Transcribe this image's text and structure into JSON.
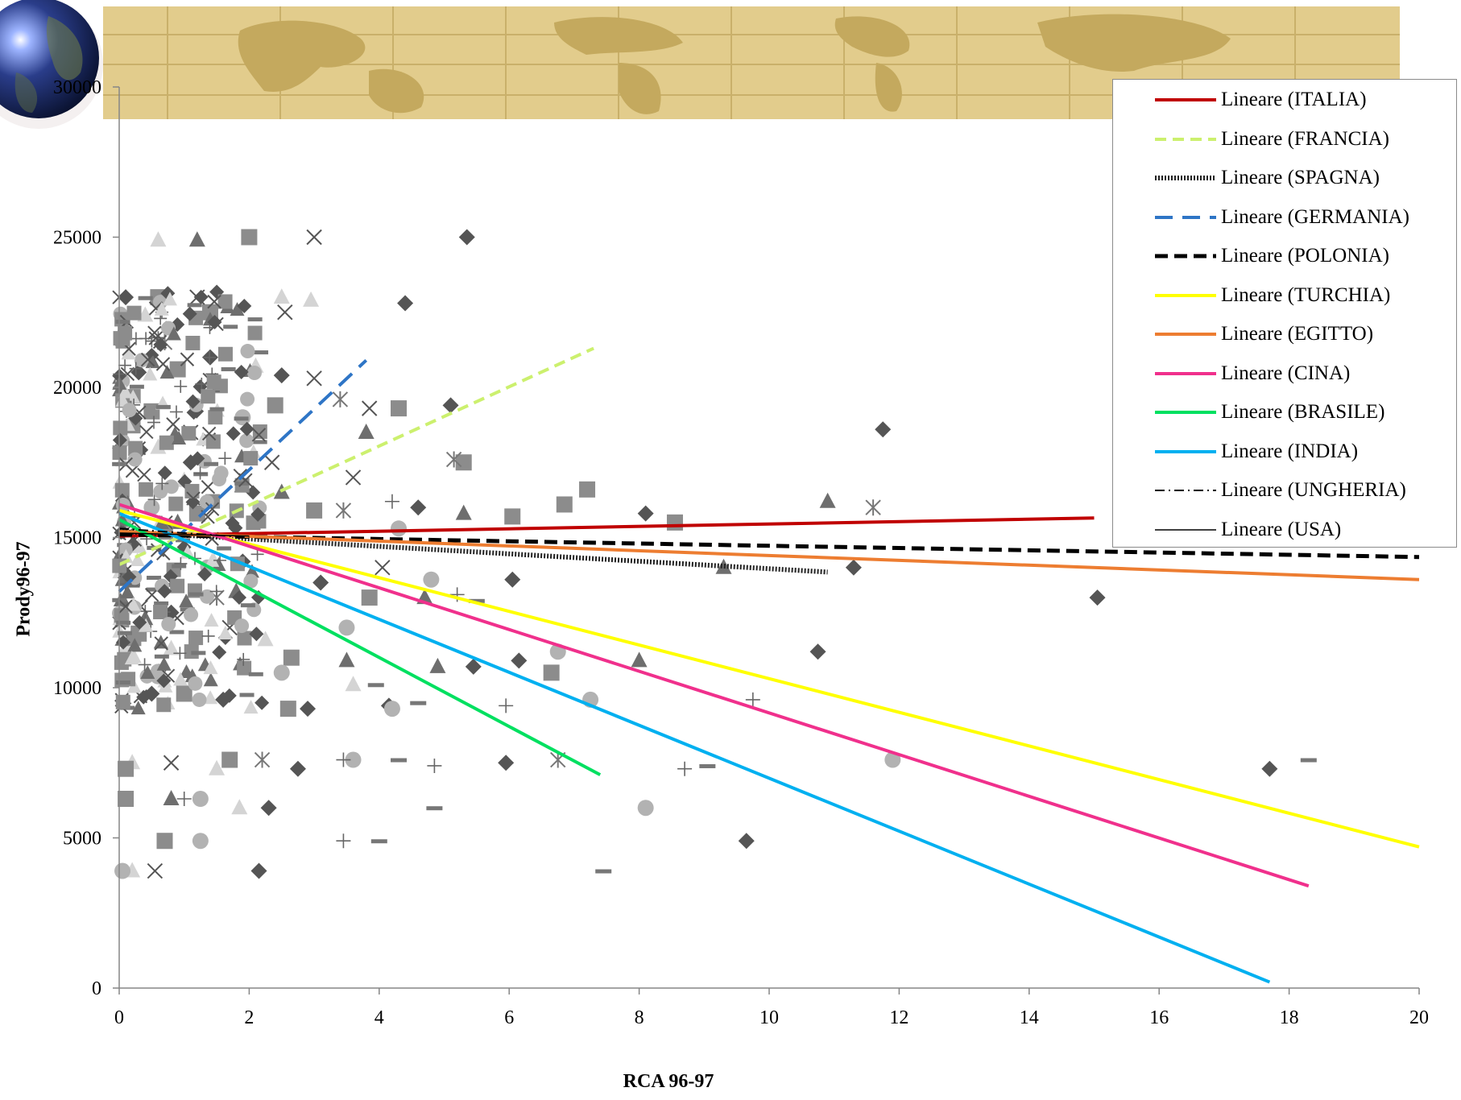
{
  "chart_data": {
    "type": "scatter",
    "title": "",
    "xlabel": "RCA 96-97",
    "ylabel": "Prody96-97",
    "xlim": [
      0,
      20
    ],
    "ylim": [
      0,
      30000
    ],
    "x_ticks": [
      "0",
      "2",
      "4",
      "6",
      "8",
      "10",
      "12",
      "14",
      "16",
      "18",
      "20"
    ],
    "y_ticks": [
      "0",
      "5000",
      "10000",
      "15000",
      "20000",
      "25000",
      "30000"
    ],
    "grid": false,
    "legend_position": "top-right",
    "trendlines": [
      {
        "name": "Lineare (ITALIA)",
        "color": "#c00000",
        "dash": "solid",
        "x": [
          0,
          15
        ],
        "y": [
          15050,
          15650
        ]
      },
      {
        "name": "Lineare (FRANCIA)",
        "color": "#ccf06e",
        "dash": "dash",
        "x": [
          0,
          7.3
        ],
        "y": [
          14100,
          21300
        ]
      },
      {
        "name": "Lineare (SPAGNA)",
        "color": "#222222",
        "dash": "dotted-thick",
        "x": [
          0,
          10.9
        ],
        "y": [
          15200,
          13850
        ]
      },
      {
        "name": "Lineare (GERMANIA)",
        "color": "#2e75c6",
        "dash": "longdash",
        "x": [
          0,
          3.8
        ],
        "y": [
          13200,
          20900
        ]
      },
      {
        "name": "Lineare (POLONIA)",
        "color": "#000000",
        "dash": "dash-thick",
        "x": [
          0,
          20
        ],
        "y": [
          15100,
          14350
        ]
      },
      {
        "name": "Lineare (TURCHIA)",
        "color": "#ffff00",
        "dash": "solid",
        "x": [
          0,
          20
        ],
        "y": [
          15900,
          4700
        ]
      },
      {
        "name": "Lineare (EGITTO)",
        "color": "#ed7d31",
        "dash": "solid",
        "x": [
          0,
          20
        ],
        "y": [
          15200,
          13600
        ]
      },
      {
        "name": "Lineare (CINA)",
        "color": "#f0308c",
        "dash": "solid",
        "x": [
          0,
          18.3
        ],
        "y": [
          16100,
          3400
        ]
      },
      {
        "name": "Lineare (BRASILE)",
        "color": "#00e060",
        "dash": "solid",
        "x": [
          0,
          7.4
        ],
        "y": [
          15600,
          7100
        ]
      },
      {
        "name": "Lineare (INDIA)",
        "color": "#00b0f0",
        "dash": "solid",
        "x": [
          0,
          17.7
        ],
        "y": [
          15800,
          200
        ]
      },
      {
        "name": "Lineare (UNGHERIA)",
        "color": "#000000",
        "dash": "dashdot",
        "x": [
          0,
          2
        ],
        "y": [
          15300,
          15000
        ]
      },
      {
        "name": "Lineare (USA)",
        "color": "#000000",
        "dash": "thin",
        "x": [
          0,
          2
        ],
        "y": [
          15150,
          15050
        ]
      }
    ],
    "scatter_points": [
      {
        "m": "diamond",
        "x": 5.35,
        "y": 25000
      },
      {
        "m": "diamond",
        "x": 4.4,
        "y": 22800
      },
      {
        "m": "diamond",
        "x": 11.75,
        "y": 18600
      },
      {
        "m": "diamond",
        "x": 5.1,
        "y": 19400
      },
      {
        "m": "diamond",
        "x": 4.6,
        "y": 16000
      },
      {
        "m": "diamond",
        "x": 8.1,
        "y": 15800
      },
      {
        "m": "diamond",
        "x": 11.3,
        "y": 14000
      },
      {
        "m": "diamond",
        "x": 15.05,
        "y": 13000
      },
      {
        "m": "diamond",
        "x": 6.05,
        "y": 13600
      },
      {
        "m": "diamond",
        "x": 10.75,
        "y": 11200
      },
      {
        "m": "diamond",
        "x": 6.15,
        "y": 10900
      },
      {
        "m": "diamond",
        "x": 5.45,
        "y": 10700
      },
      {
        "m": "diamond",
        "x": 2.9,
        "y": 9300
      },
      {
        "m": "diamond",
        "x": 4.15,
        "y": 9400
      },
      {
        "m": "diamond",
        "x": 17.7,
        "y": 7300
      },
      {
        "m": "diamond",
        "x": 5.95,
        "y": 7500
      },
      {
        "m": "diamond",
        "x": 2.75,
        "y": 7300
      },
      {
        "m": "diamond",
        "x": 2.3,
        "y": 6000
      },
      {
        "m": "diamond",
        "x": 9.65,
        "y": 4900
      },
      {
        "m": "diamond",
        "x": 2.15,
        "y": 3900
      },
      {
        "m": "diamond",
        "x": 1.4,
        "y": 21000
      },
      {
        "m": "diamond",
        "x": 1.1,
        "y": 17500
      },
      {
        "m": "diamond",
        "x": 0.8,
        "y": 12500
      },
      {
        "m": "diamond",
        "x": 0.5,
        "y": 9800
      },
      {
        "m": "diamond",
        "x": 0.3,
        "y": 20500
      },
      {
        "m": "diamond",
        "x": 0.1,
        "y": 23000
      },
      {
        "m": "diamond",
        "x": 1.9,
        "y": 14200
      },
      {
        "m": "diamond",
        "x": 2.5,
        "y": 20400
      },
      {
        "m": "diamond",
        "x": 3.1,
        "y": 13500
      },
      {
        "m": "diamond",
        "x": 1.6,
        "y": 9600
      },
      {
        "m": "triangle",
        "x": 3.8,
        "y": 18500
      },
      {
        "m": "triangle",
        "x": 10.9,
        "y": 16200
      },
      {
        "m": "triangle",
        "x": 5.3,
        "y": 15800
      },
      {
        "m": "triangle",
        "x": 9.3,
        "y": 14000
      },
      {
        "m": "triangle",
        "x": 8.0,
        "y": 10900
      },
      {
        "m": "triangle",
        "x": 4.9,
        "y": 10700
      },
      {
        "m": "triangle",
        "x": 3.5,
        "y": 10900
      },
      {
        "m": "triangle",
        "x": 4.7,
        "y": 13000
      },
      {
        "m": "triangle",
        "x": 1.2,
        "y": 24900
      },
      {
        "m": "triangle",
        "x": 0.9,
        "y": 15500
      },
      {
        "m": "triangle",
        "x": 1.8,
        "y": 13200
      },
      {
        "m": "triangle",
        "x": 0.4,
        "y": 12300
      },
      {
        "m": "triangle",
        "x": 0.8,
        "y": 6300
      },
      {
        "m": "triangle",
        "x": 2.5,
        "y": 16500
      },
      {
        "m": "ltriangle",
        "x": 0.2,
        "y": 3900
      },
      {
        "m": "ltriangle",
        "x": 0.6,
        "y": 24900
      },
      {
        "m": "ltriangle",
        "x": 2.5,
        "y": 23000
      },
      {
        "m": "ltriangle",
        "x": 2.95,
        "y": 22900
      },
      {
        "m": "ltriangle",
        "x": 3.6,
        "y": 10100
      },
      {
        "m": "ltriangle",
        "x": 2.25,
        "y": 11600
      },
      {
        "m": "ltriangle",
        "x": 1.85,
        "y": 6000
      },
      {
        "m": "ltriangle",
        "x": 2.1,
        "y": 20700
      },
      {
        "m": "ltriangle",
        "x": 0.4,
        "y": 22400
      },
      {
        "m": "ltriangle",
        "x": 0.6,
        "y": 18000
      },
      {
        "m": "ltriangle",
        "x": 1.0,
        "y": 16900
      },
      {
        "m": "ltriangle",
        "x": 0.3,
        "y": 14700
      },
      {
        "m": "ltriangle",
        "x": 0.8,
        "y": 11300
      },
      {
        "m": "ltriangle",
        "x": 1.5,
        "y": 7300
      },
      {
        "m": "ltriangle",
        "x": 0.2,
        "y": 7500
      },
      {
        "m": "square",
        "x": 2.0,
        "y": 25000
      },
      {
        "m": "square",
        "x": 1.4,
        "y": 22500
      },
      {
        "m": "square",
        "x": 4.3,
        "y": 19300
      },
      {
        "m": "square",
        "x": 5.3,
        "y": 17500
      },
      {
        "m": "square",
        "x": 7.2,
        "y": 16600
      },
      {
        "m": "square",
        "x": 6.85,
        "y": 16100
      },
      {
        "m": "square",
        "x": 6.05,
        "y": 15700
      },
      {
        "m": "square",
        "x": 8.55,
        "y": 15500
      },
      {
        "m": "square",
        "x": 6.65,
        "y": 10500
      },
      {
        "m": "square",
        "x": 3.85,
        "y": 13000
      },
      {
        "m": "square",
        "x": 2.65,
        "y": 11000
      },
      {
        "m": "square",
        "x": 2.6,
        "y": 9300
      },
      {
        "m": "square",
        "x": 1.7,
        "y": 7600
      },
      {
        "m": "square",
        "x": 0.7,
        "y": 4900
      },
      {
        "m": "square",
        "x": 0.1,
        "y": 6300
      },
      {
        "m": "square",
        "x": 0.9,
        "y": 20600
      },
      {
        "m": "square",
        "x": 0.5,
        "y": 19200
      },
      {
        "m": "square",
        "x": 1.2,
        "y": 15800
      },
      {
        "m": "square",
        "x": 0.3,
        "y": 11800
      },
      {
        "m": "square",
        "x": 1.0,
        "y": 9800
      },
      {
        "m": "square",
        "x": 0.1,
        "y": 7300
      },
      {
        "m": "square",
        "x": 2.4,
        "y": 19400
      },
      {
        "m": "square",
        "x": 3.0,
        "y": 15900
      },
      {
        "m": "square",
        "x": 0.6,
        "y": 23000
      },
      {
        "m": "circle",
        "x": 4.8,
        "y": 13600
      },
      {
        "m": "circle",
        "x": 6.75,
        "y": 11200
      },
      {
        "m": "circle",
        "x": 7.25,
        "y": 9600
      },
      {
        "m": "circle",
        "x": 3.6,
        "y": 7600
      },
      {
        "m": "circle",
        "x": 11.9,
        "y": 7600
      },
      {
        "m": "circle",
        "x": 8.1,
        "y": 6000
      },
      {
        "m": "circle",
        "x": 1.25,
        "y": 4900
      },
      {
        "m": "circle",
        "x": 3.5,
        "y": 12000
      },
      {
        "m": "circle",
        "x": 4.2,
        "y": 9300
      },
      {
        "m": "circle",
        "x": 1.25,
        "y": 6300
      },
      {
        "m": "circle",
        "x": 2.5,
        "y": 10500
      },
      {
        "m": "circle",
        "x": 1.9,
        "y": 19000
      },
      {
        "m": "circle",
        "x": 0.5,
        "y": 16000
      },
      {
        "m": "circle",
        "x": 0.05,
        "y": 3900
      },
      {
        "m": "circle",
        "x": 4.3,
        "y": 15300
      },
      {
        "m": "cross",
        "x": 3.0,
        "y": 25000
      },
      {
        "m": "cross",
        "x": 3.0,
        "y": 20300
      },
      {
        "m": "cross",
        "x": 3.85,
        "y": 19300
      },
      {
        "m": "cross",
        "x": 2.55,
        "y": 22500
      },
      {
        "m": "cross",
        "x": 3.6,
        "y": 17000
      },
      {
        "m": "cross",
        "x": 4.05,
        "y": 14000
      },
      {
        "m": "cross",
        "x": 2.35,
        "y": 17500
      },
      {
        "m": "cross",
        "x": 1.2,
        "y": 23000
      },
      {
        "m": "cross",
        "x": 0.55,
        "y": 3900
      },
      {
        "m": "cross",
        "x": 1.7,
        "y": 12000
      },
      {
        "m": "cross",
        "x": 0.8,
        "y": 7500
      },
      {
        "m": "cross",
        "x": 1.1,
        "y": 18500
      },
      {
        "m": "asterisk",
        "x": 3.4,
        "y": 19600
      },
      {
        "m": "asterisk",
        "x": 5.15,
        "y": 17600
      },
      {
        "m": "asterisk",
        "x": 11.6,
        "y": 16000
      },
      {
        "m": "asterisk",
        "x": 6.75,
        "y": 7600
      },
      {
        "m": "asterisk",
        "x": 3.45,
        "y": 15900
      },
      {
        "m": "asterisk",
        "x": 2.2,
        "y": 7600
      },
      {
        "m": "asterisk",
        "x": 1.5,
        "y": 13000
      },
      {
        "m": "asterisk",
        "x": 0.7,
        "y": 21500
      },
      {
        "m": "plus",
        "x": 9.75,
        "y": 9600
      },
      {
        "m": "plus",
        "x": 8.7,
        "y": 7300
      },
      {
        "m": "plus",
        "x": 4.85,
        "y": 7400
      },
      {
        "m": "plus",
        "x": 3.45,
        "y": 4900
      },
      {
        "m": "plus",
        "x": 5.95,
        "y": 9400
      },
      {
        "m": "plus",
        "x": 5.2,
        "y": 13100
      },
      {
        "m": "plus",
        "x": 4.2,
        "y": 16200
      },
      {
        "m": "plus",
        "x": 3.45,
        "y": 7600
      },
      {
        "m": "plus",
        "x": 1.0,
        "y": 6300
      },
      {
        "m": "dash",
        "x": 7.45,
        "y": 3900
      },
      {
        "m": "dash",
        "x": 4.85,
        "y": 6000
      },
      {
        "m": "dash",
        "x": 4.3,
        "y": 7600
      },
      {
        "m": "dash",
        "x": 3.95,
        "y": 10100
      },
      {
        "m": "dash",
        "x": 4.0,
        "y": 4900
      },
      {
        "m": "dash",
        "x": 18.3,
        "y": 7600
      },
      {
        "m": "dash",
        "x": 9.05,
        "y": 7400
      },
      {
        "m": "dash",
        "x": 5.5,
        "y": 12900
      },
      {
        "m": "dash",
        "x": 4.6,
        "y": 9500
      }
    ]
  }
}
